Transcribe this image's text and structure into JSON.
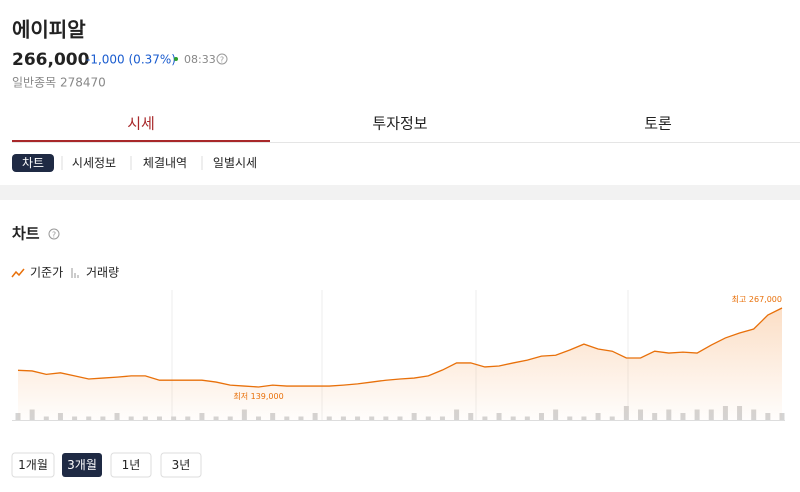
{
  "header": {
    "name": "에이피알",
    "price": "266,000",
    "change": "-1,000 (0.37%)",
    "time": "08:33",
    "market": "일반종목 278470"
  },
  "tabs": [
    "시세",
    "투자정보",
    "토론"
  ],
  "subtabs": [
    "차트",
    "시세정보",
    "체결내역",
    "일별시세"
  ],
  "section_title": "차트",
  "chart_data": {
    "type": "line",
    "series": [
      {
        "name": "기준가",
        "color": "#e8700a",
        "values": [
          166000,
          165000,
          159500,
          162000,
          157000,
          152000,
          153500,
          155000,
          157000,
          157000,
          150000,
          150000,
          150000,
          150000,
          147000,
          142000,
          140500,
          139000,
          142000,
          140500,
          140500,
          140500,
          140500,
          142000,
          144000,
          147000,
          150000,
          152000,
          153500,
          157000,
          166500,
          178000,
          178000,
          171500,
          173000,
          178000,
          182500,
          189000,
          190500,
          199000,
          208500,
          200500,
          197000,
          186000,
          186000,
          197000,
          194000,
          195500,
          194000,
          207000,
          218500,
          226500,
          233000,
          255500,
          267000
        ]
      },
      {
        "name": "거래량",
        "type": "bar",
        "color": "#d4d4d4",
        "values": [
          2,
          3,
          1,
          2,
          1,
          1,
          1,
          2,
          1,
          1,
          1,
          1,
          1,
          2,
          1,
          1,
          3,
          1,
          2,
          1,
          1,
          2,
          1,
          1,
          1,
          1,
          1,
          1,
          2,
          1,
          1,
          3,
          2,
          1,
          2,
          1,
          1,
          2,
          3,
          1,
          1,
          2,
          1,
          4,
          3,
          2,
          3,
          2,
          3,
          3,
          4,
          4,
          3,
          2,
          2
        ]
      }
    ],
    "min_label": {
      "text": "최저",
      "value": 139000,
      "label": "139,000"
    },
    "max_label": {
      "text": "최고",
      "value": 267000,
      "label": "267,000"
    }
  },
  "periods": [
    "1개월",
    "3개월",
    "1년",
    "3년"
  ]
}
